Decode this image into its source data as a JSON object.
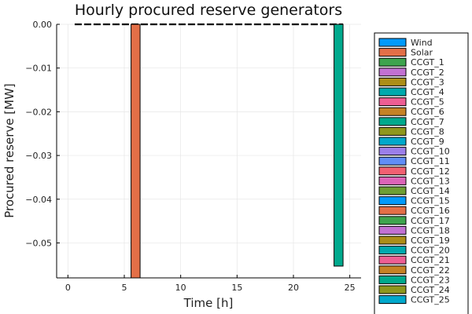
{
  "chart_data": {
    "type": "bar",
    "title": "Hourly procured reserve generators",
    "xlabel": "Time [h]",
    "ylabel": "Procured reserve [MW]",
    "xlim": [
      -1,
      26
    ],
    "ylim": [
      -0.058,
      0.0
    ],
    "x_ticks": [
      0,
      5,
      10,
      15,
      20,
      25
    ],
    "y_ticks": [
      0.0,
      -0.01,
      -0.02,
      -0.03,
      -0.04,
      -0.05
    ],
    "y_tick_labels": [
      "0.00",
      "−0.01",
      "−0.02",
      "−0.03",
      "−0.04",
      "−0.05"
    ],
    "grid": true,
    "legend_position": "right",
    "zero_line_hours": [
      1,
      24
    ],
    "bars": [
      {
        "series": "Solar",
        "x": 6,
        "value": -0.0585
      },
      {
        "series": "CCGT_7",
        "x": 24,
        "value": -0.0553
      }
    ],
    "series": [
      {
        "name": "Wind",
        "color": "#009AFA"
      },
      {
        "name": "Solar",
        "color": "#E36F47"
      },
      {
        "name": "CCGT_1",
        "color": "#3EA44E"
      },
      {
        "name": "CCGT_2",
        "color": "#C271D2"
      },
      {
        "name": "CCGT_3",
        "color": "#AC8E18"
      },
      {
        "name": "CCGT_4",
        "color": "#00A9AD"
      },
      {
        "name": "CCGT_5",
        "color": "#ED5E93"
      },
      {
        "name": "CCGT_6",
        "color": "#C68225"
      },
      {
        "name": "CCGT_7",
        "color": "#00A98D"
      },
      {
        "name": "CCGT_8",
        "color": "#8E971D"
      },
      {
        "name": "CCGT_9",
        "color": "#00A8CB"
      },
      {
        "name": "CCGT_10",
        "color": "#9B7FE9"
      },
      {
        "name": "CCGT_11",
        "color": "#618DF6"
      },
      {
        "name": "CCGT_12",
        "color": "#F16072"
      },
      {
        "name": "CCGT_13",
        "color": "#DC64B7"
      },
      {
        "name": "CCGT_14",
        "color": "#6D9E33"
      },
      {
        "name": "CCGT_15",
        "color": "#009AFA"
      },
      {
        "name": "CCGT_16",
        "color": "#E36F47"
      },
      {
        "name": "CCGT_17",
        "color": "#3EA44E"
      },
      {
        "name": "CCGT_18",
        "color": "#C271D2"
      },
      {
        "name": "CCGT_19",
        "color": "#AC8E18"
      },
      {
        "name": "CCGT_20",
        "color": "#00A9AD"
      },
      {
        "name": "CCGT_21",
        "color": "#ED5E93"
      },
      {
        "name": "CCGT_22",
        "color": "#C68225"
      },
      {
        "name": "CCGT_23",
        "color": "#00A98D"
      },
      {
        "name": "CCGT_24",
        "color": "#8E971D"
      },
      {
        "name": "CCGT_25",
        "color": "#00A8CB"
      }
    ]
  }
}
